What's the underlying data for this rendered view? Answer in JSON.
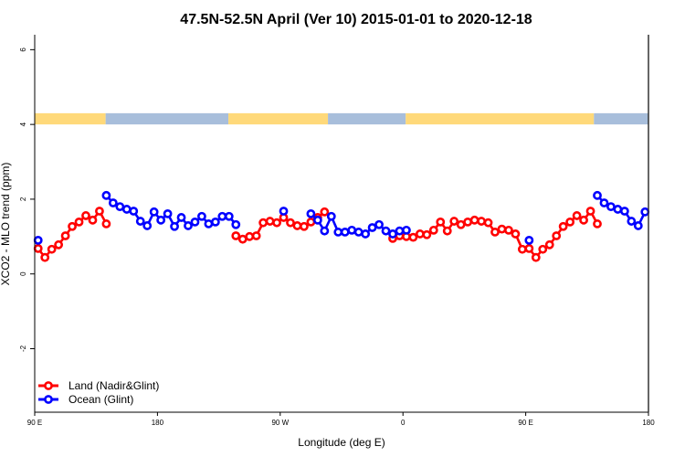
{
  "chart_data": {
    "type": "line",
    "title": "47.5N-52.5N April (Ver 10)   2015-01-01 to 2020-12-18",
    "xlabel": "Longitude (deg E)",
    "ylabel": "XCO2 - MLO trend (ppm)",
    "xlim": [
      90,
      540
    ],
    "ylim": [
      -3.7,
      6.4
    ],
    "x_ticks": [
      90,
      180,
      270,
      360,
      450,
      540
    ],
    "x_tick_labels": [
      "90 E",
      "180",
      "90 W",
      "0",
      "90 E",
      "180"
    ],
    "y_ticks": [
      -2,
      0,
      2,
      4,
      6
    ],
    "y_tick_labels": [
      "-2",
      "0",
      "2",
      "4",
      "6"
    ],
    "grid": false,
    "legend_position": "bottom-left",
    "surface_strip": {
      "y_range": [
        4.0,
        4.3
      ],
      "colors": {
        "land": "#FFD97A",
        "ocean": "#A8BEDB"
      },
      "segments": [
        {
          "type": "land",
          "from": 90,
          "to": 142
        },
        {
          "type": "ocean",
          "from": 142,
          "to": 232
        },
        {
          "type": "land",
          "from": 232,
          "to": 305
        },
        {
          "type": "ocean",
          "from": 305,
          "to": 362
        },
        {
          "type": "land",
          "from": 362,
          "to": 500
        },
        {
          "type": "ocean",
          "from": 500,
          "to": 540
        }
      ]
    },
    "x_step": 5,
    "x_start": 92.5,
    "series": [
      {
        "name": "Land (Nadir&Glint)",
        "color": "#FF0000",
        "values": [
          0.68,
          0.44,
          0.66,
          0.78,
          1.02,
          1.27,
          1.39,
          1.56,
          1.44,
          1.68,
          1.34,
          null,
          null,
          null,
          null,
          null,
          null,
          null,
          null,
          null,
          null,
          null,
          null,
          null,
          null,
          null,
          null,
          null,
          null,
          1.02,
          0.93,
          1.0,
          1.02,
          1.37,
          1.41,
          1.37,
          1.51,
          1.37,
          1.29,
          1.27,
          1.39,
          1.51,
          1.66,
          null,
          null,
          null,
          null,
          null,
          null,
          null,
          null,
          null,
          0.95,
          1.02,
          1.0,
          0.98,
          1.07,
          1.05,
          1.17,
          1.39,
          1.15,
          1.41,
          1.32,
          1.39,
          1.44,
          1.41,
          1.37,
          1.12,
          1.2,
          1.17,
          1.07,
          0.66,
          0.68,
          0.44,
          0.66,
          0.78,
          1.02,
          1.27,
          1.39,
          1.56,
          1.44,
          1.68,
          1.34
        ]
      },
      {
        "name": "Ocean (Glint)",
        "color": "#0000FF",
        "values": [
          0.9,
          null,
          null,
          null,
          null,
          null,
          null,
          null,
          null,
          null,
          2.1,
          1.9,
          1.8,
          1.73,
          1.68,
          1.41,
          1.29,
          1.66,
          1.44,
          1.61,
          1.27,
          1.51,
          1.29,
          1.39,
          1.54,
          1.34,
          1.39,
          1.54,
          1.54,
          1.32,
          null,
          null,
          null,
          null,
          null,
          null,
          1.68,
          null,
          null,
          null,
          1.61,
          1.44,
          1.15,
          1.54,
          1.12,
          1.12,
          1.17,
          1.12,
          1.07,
          1.24,
          1.32,
          1.15,
          1.07,
          1.15,
          1.17,
          null,
          null,
          null,
          null,
          null,
          null,
          null,
          null,
          null,
          null,
          null,
          null,
          null,
          null,
          null,
          null,
          null,
          0.9,
          null,
          null,
          null,
          null,
          null,
          null,
          null,
          null,
          null,
          2.1,
          1.9,
          1.8,
          1.73,
          1.68,
          1.41,
          1.29,
          1.66
        ]
      }
    ]
  }
}
